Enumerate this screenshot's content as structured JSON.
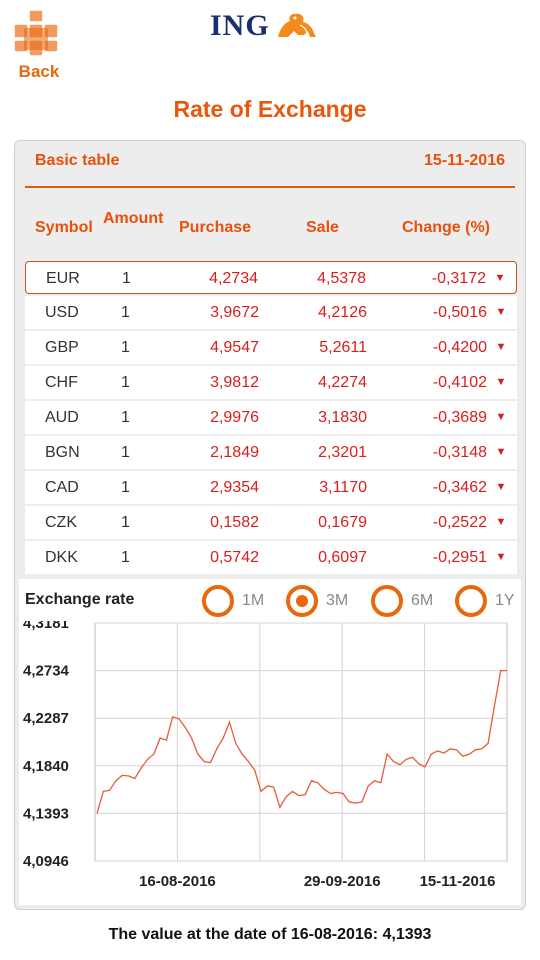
{
  "header": {
    "back_label": "Back",
    "logo_text": "ING",
    "brand_color": "#e8680c",
    "logo_color": "#1a2f6b"
  },
  "page_title": "Rate of Exchange",
  "table": {
    "caption": "Basic table",
    "date": "15-11-2016",
    "columns": {
      "symbol": "Symbol",
      "amount": "Amount",
      "purchase": "Purchase",
      "sale": "Sale",
      "change": "Change (%)"
    },
    "rows": [
      {
        "symbol": "EUR",
        "amount": "1",
        "purchase": "4,2734",
        "sale": "4,5378",
        "change": "-0,3172",
        "trend": "down-triangle-icon",
        "selected": true
      },
      {
        "symbol": "USD",
        "amount": "1",
        "purchase": "3,9672",
        "sale": "4,2126",
        "change": "-0,5016",
        "trend": "down-triangle-icon"
      },
      {
        "symbol": "GBP",
        "amount": "1",
        "purchase": "4,9547",
        "sale": "5,2611",
        "change": "-0,4200",
        "trend": "down-triangle-icon"
      },
      {
        "symbol": "CHF",
        "amount": "1",
        "purchase": "3,9812",
        "sale": "4,2274",
        "change": "-0,4102",
        "trend": "down-triangle-icon"
      },
      {
        "symbol": "AUD",
        "amount": "1",
        "purchase": "2,9976",
        "sale": "3,1830",
        "change": "-0,3689",
        "trend": "down-triangle-icon"
      },
      {
        "symbol": "BGN",
        "amount": "1",
        "purchase": "2,1849",
        "sale": "2,3201",
        "change": "-0,3148",
        "trend": "down-triangle-icon"
      },
      {
        "symbol": "CAD",
        "amount": "1",
        "purchase": "2,9354",
        "sale": "3,1170",
        "change": "-0,3462",
        "trend": "down-triangle-icon"
      },
      {
        "symbol": "CZK",
        "amount": "1",
        "purchase": "0,1582",
        "sale": "0,1679",
        "change": "-0,2522",
        "trend": "down-triangle-icon"
      },
      {
        "symbol": "DKK",
        "amount": "1",
        "purchase": "0,5742",
        "sale": "0,6097",
        "change": "-0,2951",
        "trend": "down-triangle-icon"
      }
    ]
  },
  "chart_section": {
    "title": "Exchange rate",
    "periods": [
      {
        "label": "1M",
        "active": false
      },
      {
        "label": "3M",
        "active": true
      },
      {
        "label": "6M",
        "active": false
      },
      {
        "label": "1Y",
        "active": false
      }
    ]
  },
  "chart_data": {
    "type": "line",
    "title": "",
    "xlabel": "",
    "ylabel": "",
    "ylim": [
      4.0946,
      4.3181
    ],
    "yticks": [
      "4,3181",
      "4,2734",
      "4,2287",
      "4,1840",
      "4,1393",
      "4,0946"
    ],
    "ytick_values": [
      4.3181,
      4.2734,
      4.2287,
      4.184,
      4.1393,
      4.0946
    ],
    "xticks": [
      "16-08-2016",
      "29-09-2016",
      "15-11-2016"
    ],
    "xlim": [
      "16-08-2016",
      "17-11-2016"
    ],
    "grid": true,
    "line_color": "#e85a3a",
    "series": [
      {
        "values": [
          4.1393,
          4.16,
          4.161,
          4.17,
          4.175,
          4.1745,
          4.172,
          4.182,
          4.19,
          4.195,
          4.21,
          4.208,
          4.23,
          4.228,
          4.22,
          4.21,
          4.195,
          4.188,
          4.187,
          4.2,
          4.21,
          4.225,
          4.205,
          4.195,
          4.188,
          4.18,
          4.16,
          4.165,
          4.164,
          4.145,
          4.155,
          4.16,
          4.156,
          4.157,
          4.17,
          4.168,
          4.162,
          4.158,
          4.159,
          4.158,
          4.15,
          4.149,
          4.15,
          4.165,
          4.17,
          4.168,
          4.195,
          4.188,
          4.185,
          4.19,
          4.192,
          4.186,
          4.183,
          4.195,
          4.198,
          4.196,
          4.2,
          4.199,
          4.193,
          4.195,
          4.199,
          4.2,
          4.205,
          4.24,
          4.2734,
          4.2734
        ]
      }
    ]
  },
  "footer": {
    "note": "The value at the date of 16-08-2016: 4,1393"
  }
}
